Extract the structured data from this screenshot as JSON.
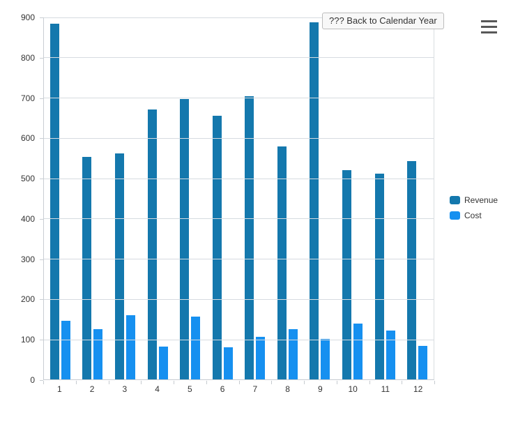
{
  "drillup_button": {
    "label": "??? Back to Calendar Year"
  },
  "menu": {
    "icon": "hamburger-menu-icon"
  },
  "colors": {
    "revenue": "#1478ad",
    "cost": "#1690f0",
    "grid": "#d6dbe0",
    "axis": "#c6cbd0",
    "label_text": "#333333",
    "tooltip_bg": "#f8f8f8",
    "tooltip_border": "#bcbcbc"
  },
  "chart_data": {
    "type": "bar",
    "title": "",
    "xlabel": "",
    "ylabel": "",
    "categories": [
      "1",
      "2",
      "3",
      "4",
      "5",
      "6",
      "7",
      "8",
      "9",
      "10",
      "11",
      "12"
    ],
    "series": [
      {
        "name": "Revenue",
        "color": "#1478ad",
        "values": [
          883,
          553,
          560,
          670,
          695,
          655,
          703,
          579,
          886,
          520,
          510,
          541
        ]
      },
      {
        "name": "Cost",
        "color": "#1690f0",
        "values": [
          146,
          125,
          160,
          81,
          155,
          80,
          106,
          125,
          100,
          138,
          121,
          84
        ]
      }
    ],
    "ylim": [
      0,
      900
    ],
    "yticks": [
      0,
      100,
      200,
      300,
      400,
      500,
      600,
      700,
      800,
      900
    ],
    "grid": true,
    "legend_position": "right"
  }
}
